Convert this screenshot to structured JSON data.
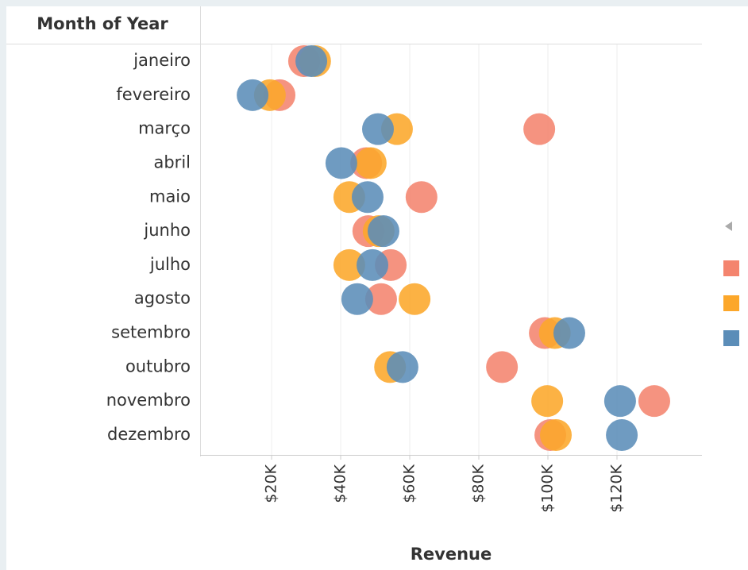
{
  "chart_data": {
    "type": "dot",
    "row_header": "Month of Year",
    "x_label": "Revenue",
    "categories": [
      "janeiro",
      "fevereiro",
      "março",
      "abril",
      "maio",
      "junho",
      "julho",
      "agosto",
      "setembro",
      "outubro",
      "novembro",
      "dezembro"
    ],
    "series": [
      {
        "color": "#f4846e",
        "values": [
          29400,
          22300,
          97500,
          47400,
          63400,
          48000,
          54500,
          51700,
          99100,
          86700,
          130800,
          100700
        ]
      },
      {
        "color": "#fca72a",
        "values": [
          32600,
          19500,
          56300,
          48700,
          42500,
          51000,
          42500,
          61400,
          102000,
          54300,
          99800,
          102300
        ]
      },
      {
        "color": "#5b8db8",
        "values": [
          31500,
          14500,
          50800,
          40200,
          47800,
          52400,
          49200,
          44800,
          106200,
          57900,
          120900,
          121400
        ]
      }
    ],
    "xlim": [
      -700,
      144600
    ],
    "xticks": [
      {
        "value": 20000,
        "label": "$20K"
      },
      {
        "value": 40000,
        "label": "$40K"
      },
      {
        "value": 60000,
        "label": "$60K"
      },
      {
        "value": 80000,
        "label": "$80K"
      },
      {
        "value": 100000,
        "label": "$100K"
      },
      {
        "value": 120000,
        "label": "$120K"
      }
    ],
    "grid": true
  }
}
